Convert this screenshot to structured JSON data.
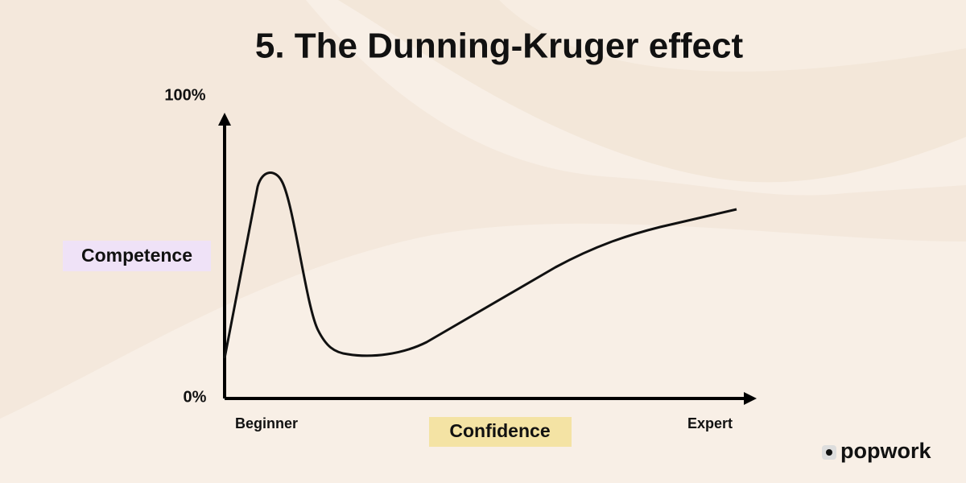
{
  "title": "5. The Dunning-Kruger effect",
  "axes": {
    "y_max_label": "100%",
    "y_min_label": "0%",
    "y_label": "Competence",
    "x_start_label": "Beginner",
    "x_end_label": "Expert",
    "x_label": "Confidence"
  },
  "brand": "popwork"
}
